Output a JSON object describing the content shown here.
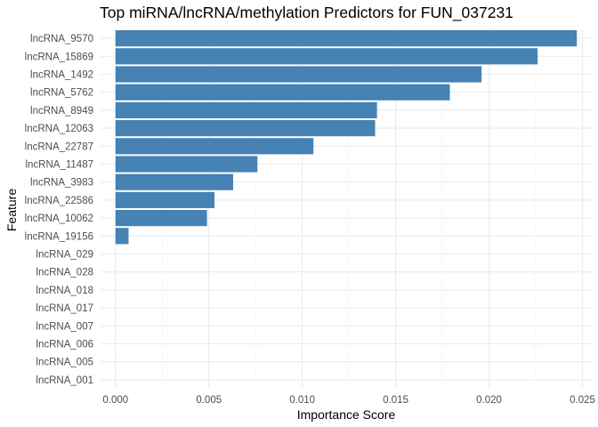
{
  "chart_data": {
    "type": "bar",
    "orientation": "horizontal",
    "title": "Top miRNA/lncRNA/methylation Predictors for FUN_037231",
    "xlabel": "Importance Score",
    "ylabel": "Feature",
    "xlim": [
      -0.0008,
      0.0255
    ],
    "xticks": [
      0.0,
      0.005,
      0.01,
      0.015,
      0.02,
      0.025
    ],
    "xtick_labels": [
      "0.000",
      "0.005",
      "0.010",
      "0.015",
      "0.020",
      "0.025"
    ],
    "grid": true,
    "legend": "none",
    "bar_color": "#4682B4",
    "categories": [
      "lncRNA_9570",
      "lncRNA_15869",
      "lncRNA_1492",
      "lncRNA_5762",
      "lncRNA_8949",
      "lncRNA_12063",
      "lncRNA_22787",
      "lncRNA_11487",
      "lncRNA_3983",
      "lncRNA_22586",
      "lncRNA_10062",
      "lncRNA_19156",
      "lncRNA_029",
      "lncRNA_028",
      "lncRNA_018",
      "lncRNA_017",
      "lncRNA_007",
      "lncRNA_006",
      "lncRNA_005",
      "lncRNA_001"
    ],
    "values": [
      0.0247,
      0.0226,
      0.0196,
      0.0179,
      0.014,
      0.0139,
      0.0106,
      0.0076,
      0.0063,
      0.0053,
      0.0049,
      0.0007,
      0,
      0,
      0,
      0,
      0,
      0,
      0,
      0
    ]
  }
}
